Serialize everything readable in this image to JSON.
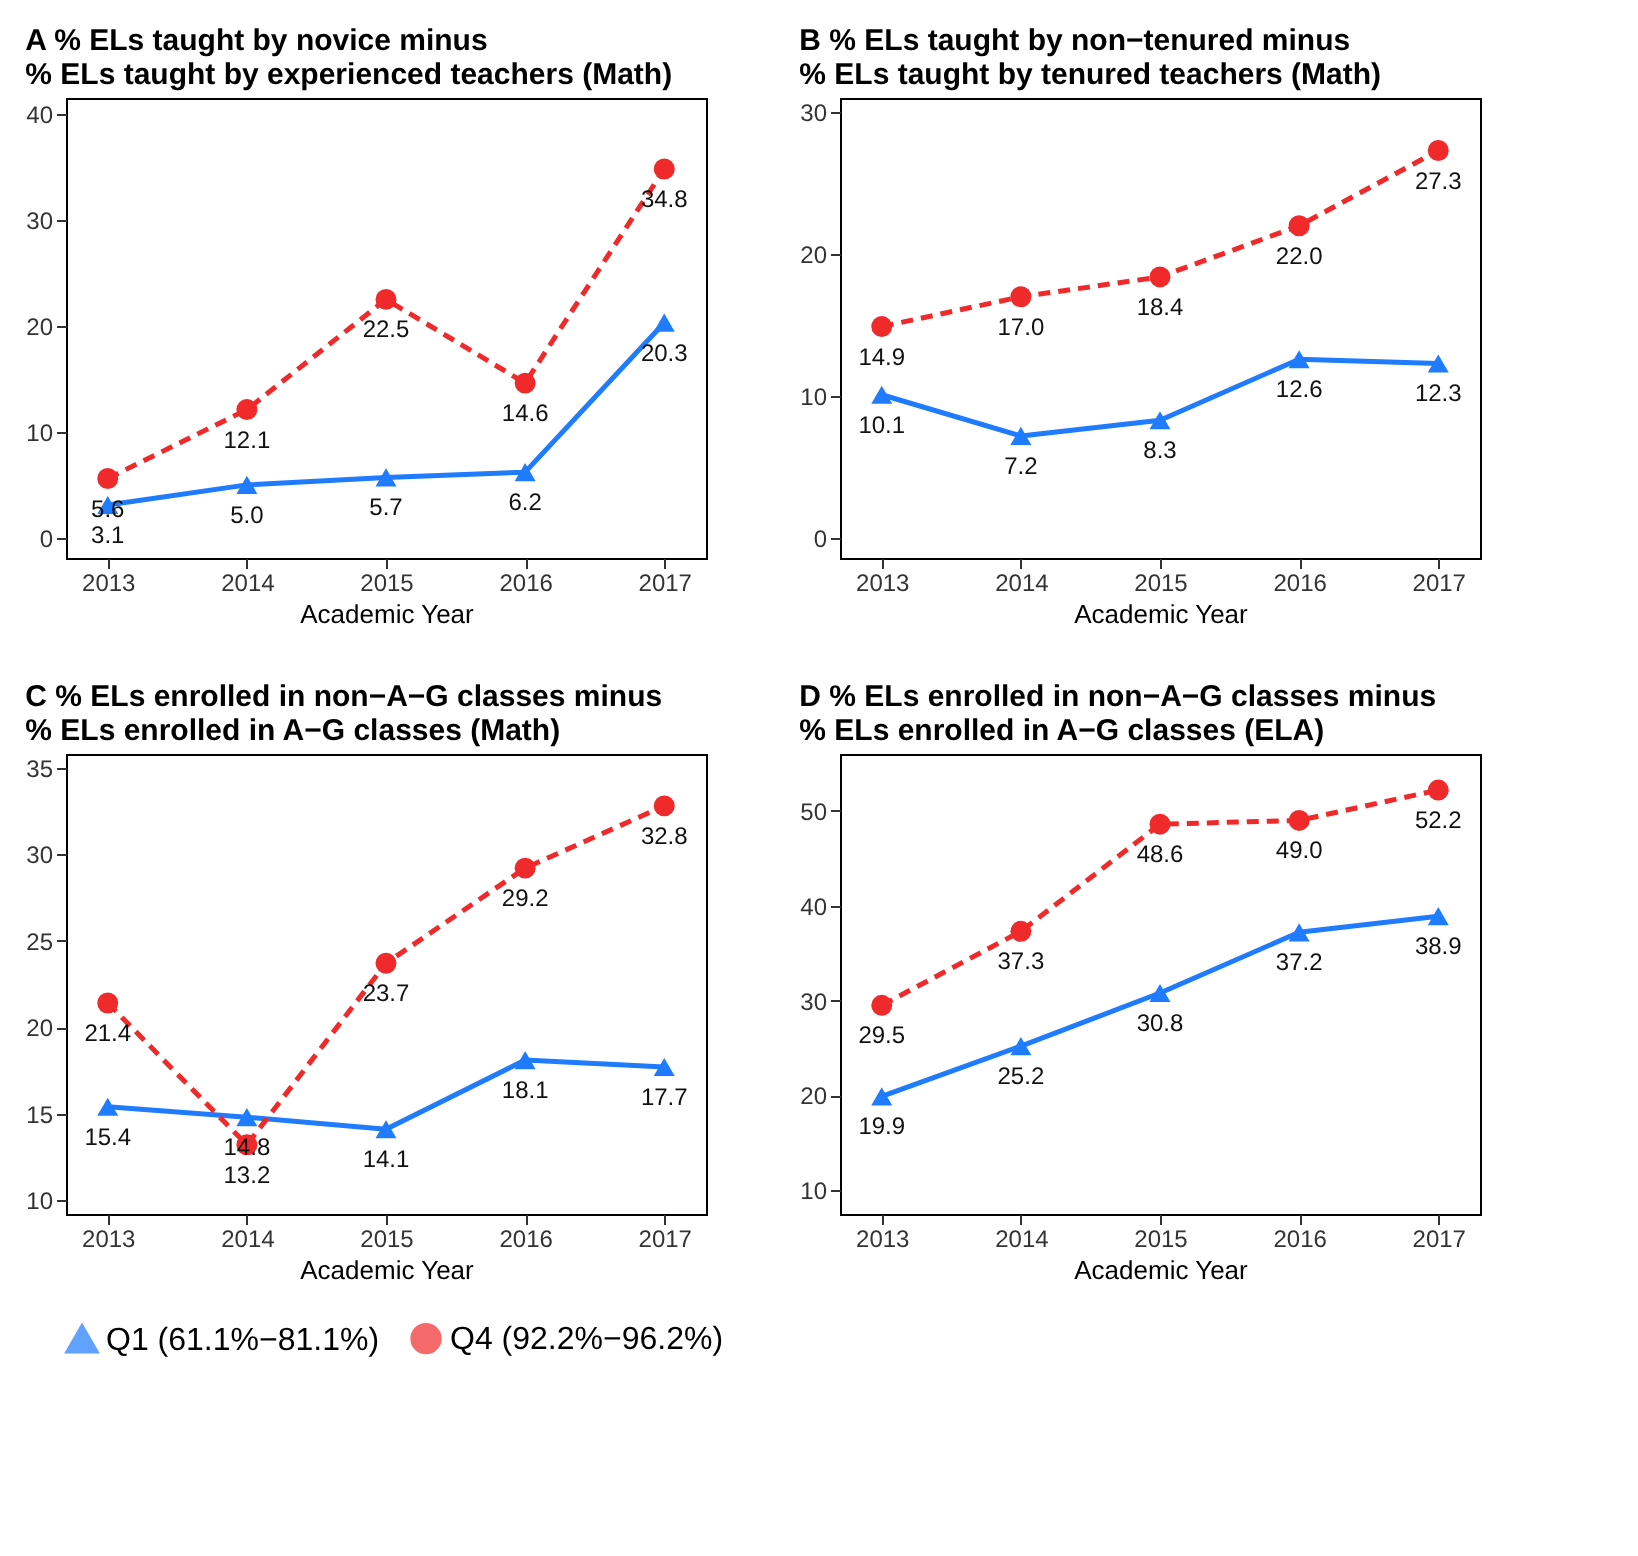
{
  "chart_data": [
    {
      "type": "line",
      "title": "A  % ELs taught by novice minus\n    % ELs taught by experienced teachers (Math)",
      "xlabel": "Academic Year",
      "categories": [
        "2013",
        "2014",
        "2015",
        "2016",
        "2017"
      ],
      "ylim": [
        -1.9,
        41.5
      ],
      "yticks": [
        0,
        10,
        20,
        30,
        40
      ],
      "legend": "bottom",
      "series": [
        {
          "name": "Q1 (61.1%−81.1%)",
          "color": "#1f7bff",
          "marker": "triangle",
          "line_style": "solid",
          "values": [
            3.1,
            5.0,
            5.7,
            6.2,
            20.3
          ],
          "value_labels": [
            "3.1",
            "5.0",
            "5.7",
            "6.2",
            "20.3"
          ]
        },
        {
          "name": "Q4 (92.2%−96.2%)",
          "color": "#f02a2a",
          "marker": "circle",
          "line_style": "dashed",
          "values": [
            5.6,
            12.1,
            22.5,
            14.6,
            34.8
          ],
          "value_labels": [
            "5.6",
            "12.1",
            "22.5",
            "14.6",
            "34.8"
          ]
        }
      ]
    },
    {
      "type": "line",
      "title": "B  % ELs taught by non−tenured minus\n    % ELs taught by tenured teachers (Math)",
      "xlabel": "Academic Year",
      "categories": [
        "2013",
        "2014",
        "2015",
        "2016",
        "2017"
      ],
      "ylim": [
        -1.4,
        31
      ],
      "yticks": [
        0,
        10,
        20,
        30
      ],
      "legend": "bottom",
      "series": [
        {
          "name": "Q1 (61.1%−81.1%)",
          "color": "#1f7bff",
          "marker": "triangle",
          "line_style": "solid",
          "values": [
            10.1,
            7.2,
            8.3,
            12.6,
            12.3
          ],
          "value_labels": [
            "10.1",
            "7.2",
            "8.3",
            "12.6",
            "12.3"
          ]
        },
        {
          "name": "Q4 (92.2%−96.2%)",
          "color": "#f02a2a",
          "marker": "circle",
          "line_style": "dashed",
          "values": [
            14.9,
            17.0,
            18.4,
            22.0,
            27.3
          ],
          "value_labels": [
            "14.9",
            "17.0",
            "18.4",
            "22.0",
            "27.3"
          ]
        }
      ]
    },
    {
      "type": "line",
      "title": "C  % ELs enrolled in non−A−G classes minus\n    % ELs enrolled in A−G classes (Math)",
      "xlabel": "Academic Year",
      "categories": [
        "2013",
        "2014",
        "2015",
        "2016",
        "2017"
      ],
      "ylim": [
        9.2,
        35.8
      ],
      "yticks": [
        10,
        15,
        20,
        25,
        30,
        35
      ],
      "legend": "bottom",
      "series": [
        {
          "name": "Q1 (61.1%−81.1%)",
          "color": "#1f7bff",
          "marker": "triangle",
          "line_style": "solid",
          "values": [
            15.4,
            14.8,
            14.1,
            18.1,
            17.7
          ],
          "value_labels": [
            "15.4",
            "14.8",
            "14.1",
            "18.1",
            "17.7"
          ]
        },
        {
          "name": "Q4 (92.2%−96.2%)",
          "color": "#f02a2a",
          "marker": "circle",
          "line_style": "dashed",
          "values": [
            21.4,
            13.2,
            23.7,
            29.2,
            32.8
          ],
          "value_labels": [
            "21.4",
            "13.2",
            "23.7",
            "29.2",
            "32.8"
          ]
        }
      ]
    },
    {
      "type": "line",
      "title": "D  % ELs enrolled in non−A−G classes minus\n    % ELs enrolled in A−G classes (ELA)",
      "xlabel": "Academic Year",
      "categories": [
        "2013",
        "2014",
        "2015",
        "2016",
        "2017"
      ],
      "ylim": [
        7.5,
        56
      ],
      "yticks": [
        10,
        20,
        30,
        40,
        50
      ],
      "legend": "bottom",
      "series": [
        {
          "name": "Q1 (61.1%−81.1%)",
          "color": "#1f7bff",
          "marker": "triangle",
          "line_style": "solid",
          "values": [
            19.9,
            25.2,
            30.8,
            37.2,
            38.9
          ],
          "value_labels": [
            "19.9",
            "25.2",
            "30.8",
            "37.2",
            "38.9"
          ]
        },
        {
          "name": "Q4 (92.2%−96.2%)",
          "color": "#f02a2a",
          "marker": "circle",
          "line_style": "dashed",
          "values": [
            29.5,
            37.3,
            48.6,
            49.0,
            52.2
          ],
          "value_labels": [
            "29.5",
            "37.3",
            "48.6",
            "49.0",
            "52.2"
          ]
        }
      ]
    }
  ]
}
